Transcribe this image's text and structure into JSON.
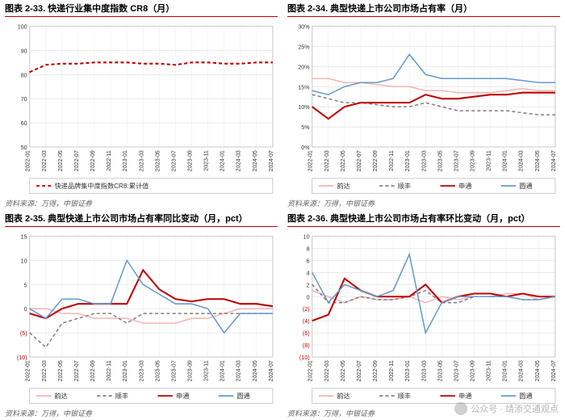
{
  "source_text": "资料来源：万得，中银证券",
  "watermark": "公众号 · 靖添交通观点",
  "x_labels": [
    "2022-01",
    "2022-03",
    "2022-05",
    "2022-07",
    "2022-09",
    "2022-11",
    "2023-01",
    "2023-03",
    "2023-05",
    "2023-07",
    "2023-09",
    "2023-11",
    "2024-01",
    "2024-03",
    "2024-05",
    "2024-07"
  ],
  "axis_fontsize": 7,
  "label_fontsize": 8,
  "grid_color": "#d9d9d9",
  "border_color": "#bfbfbf",
  "colors": {
    "cr8": "#c00000",
    "yunda": "#f4b5b5",
    "sf": "#808080",
    "zto": "#c00000",
    "yto": "#6699cc"
  },
  "chart1": {
    "title": "图表 2-33. 快递行业集中度指数 CR8（月）",
    "type": "line",
    "ylim": [
      50,
      100
    ],
    "ytick_step": 10,
    "legend": [
      "快递品牌集中度指数CR8:累计值"
    ],
    "line_style": "dashed",
    "cr8": [
      81,
      84,
      84.5,
      84.5,
      85,
      85,
      85,
      84.5,
      84.5,
      84,
      85,
      85,
      84.5,
      84.5,
      85,
      85
    ]
  },
  "chart2": {
    "title": "图表 2-34. 典型快递上市公司市场占有率（月）",
    "type": "line",
    "ylim": [
      0,
      30
    ],
    "ytick_step": 5,
    "y_suffix": "%",
    "legend": [
      "韵达",
      "顺丰",
      "申通",
      "圆通"
    ],
    "yunda": [
      17,
      17,
      16,
      16,
      15.5,
      15,
      15,
      14,
      14,
      13.5,
      13.5,
      13.5,
      14,
      14.5,
      14,
      14
    ],
    "sf": [
      13,
      12,
      11,
      11,
      10.5,
      10,
      10,
      11,
      10,
      9,
      9,
      9,
      9,
      8.5,
      8,
      8
    ],
    "zto": [
      10,
      7,
      10,
      11,
      11,
      11,
      11,
      13,
      12,
      12,
      12.5,
      13,
      13,
      13.5,
      13.5,
      13.5
    ],
    "yto": [
      14,
      13,
      15,
      16,
      16,
      17,
      23,
      18,
      17,
      17,
      17,
      17,
      17,
      16.5,
      16,
      16
    ]
  },
  "chart3": {
    "title": "图表 2-35. 典型快递上市公司市场占有率同比变动（月，pct）",
    "type": "line",
    "ylim": [
      -10,
      15
    ],
    "ytick_step": 5,
    "neg_color": "#c00000",
    "legend": [
      "韵达",
      "顺丰",
      "申通",
      "圆通"
    ],
    "yunda": [
      0,
      0,
      -1,
      -1,
      -2,
      -2,
      -2,
      -3,
      -3,
      -3,
      -2,
      -2,
      -1,
      0,
      0,
      0
    ],
    "sf": [
      -5,
      -8,
      -3,
      -2,
      -1,
      -1,
      -3,
      -1,
      -1,
      -1,
      -1,
      -1,
      -1,
      -1,
      -1,
      -1
    ],
    "zto": [
      -1,
      -2,
      0,
      1,
      1,
      1,
      1,
      8,
      4,
      2,
      1.5,
      2,
      2,
      1,
      1,
      0.5
    ],
    "yto": [
      0,
      -2,
      2,
      2,
      1,
      1,
      10,
      5,
      3,
      1,
      1,
      0,
      -5,
      -1,
      -1,
      -1
    ]
  },
  "chart4": {
    "title": "图表 2-36. 典型快递上市公司市场占有率环比变动（月，pct）",
    "type": "line",
    "ylim": [
      -10,
      10
    ],
    "ytick_step": 2,
    "neg_color": "#c00000",
    "legend": [
      "韵达",
      "顺丰",
      "申通",
      "圆通"
    ],
    "yunda": [
      1,
      0,
      -1,
      0,
      -0.5,
      -0.5,
      0,
      -1,
      0,
      -0.5,
      0,
      0,
      0.5,
      0.5,
      -0.5,
      0
    ],
    "sf": [
      2,
      -1,
      -1,
      0,
      -0.5,
      -0.5,
      0,
      1,
      -1,
      -1,
      0,
      0,
      0,
      -0.5,
      -0.5,
      0
    ],
    "zto": [
      -4,
      -3,
      3,
      1,
      0,
      0,
      0,
      2,
      -1,
      0,
      0.5,
      0.5,
      0,
      0.5,
      0,
      0
    ],
    "yto": [
      4,
      -1,
      2,
      1,
      0,
      1,
      7,
      -6,
      -1,
      0,
      0,
      0,
      0,
      -0.5,
      -0.5,
      0
    ]
  }
}
